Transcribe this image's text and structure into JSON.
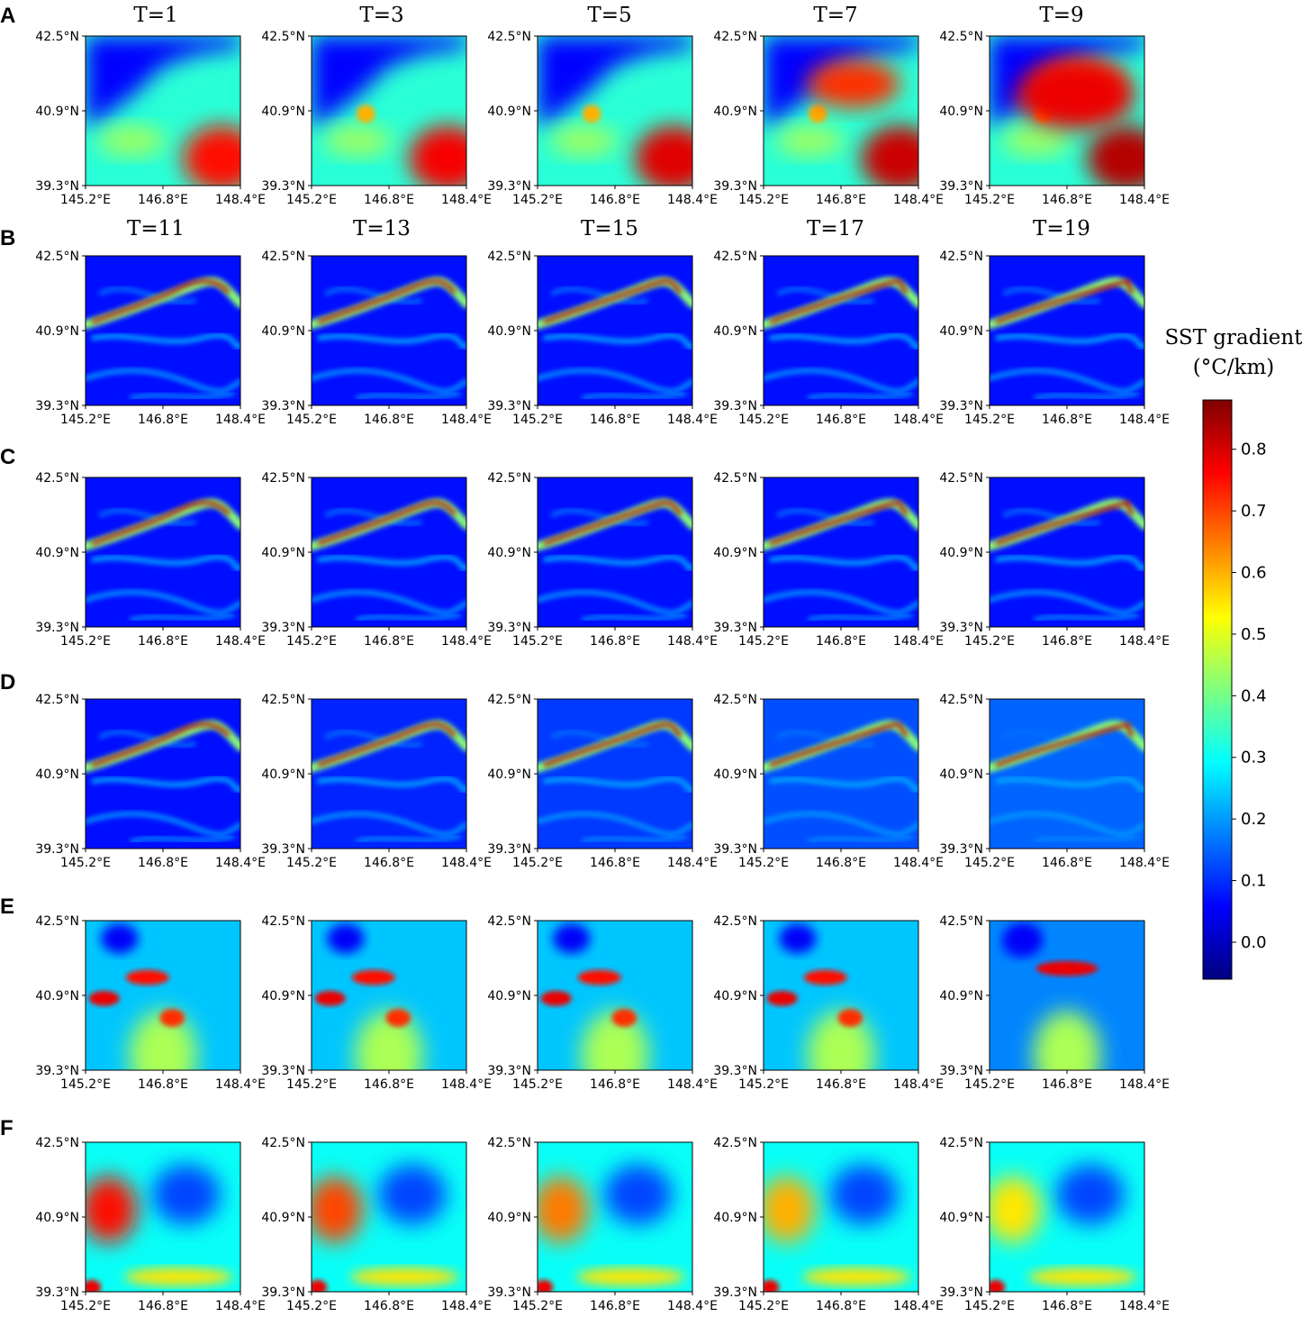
{
  "chart_data": {
    "type": "heatmap",
    "rows": [
      {
        "label": "A",
        "titles": [
          "T=1",
          "T=3",
          "T=5",
          "T=7",
          "T=9"
        ]
      },
      {
        "label": "B",
        "titles": [
          "T=11",
          "T=13",
          "T=15",
          "T=17",
          "T=19"
        ]
      },
      {
        "label": "C",
        "titles": []
      },
      {
        "label": "D",
        "titles": []
      },
      {
        "label": "E",
        "titles": []
      },
      {
        "label": "F",
        "titles": []
      }
    ],
    "x_ticks": [
      "145.2°E",
      "146.8°E",
      "148.4°E"
    ],
    "y_ticks": [
      "42.5°N",
      "40.9°N",
      "39.3°N"
    ],
    "x_range": [
      145.2,
      148.4
    ],
    "y_range": [
      39.3,
      42.5
    ],
    "colorbar": {
      "label_line1": "SST gradient",
      "label_line2": "(°C/km)",
      "ticks": [
        "0.8",
        "0.7",
        "0.6",
        "0.5",
        "0.4",
        "0.3",
        "0.2",
        "0.1",
        "0.0"
      ],
      "tick_values": [
        0.8,
        0.7,
        0.6,
        0.5,
        0.4,
        0.3,
        0.2,
        0.1,
        0.0
      ],
      "range": [
        -0.06,
        0.88
      ],
      "colormap": "jet"
    }
  }
}
